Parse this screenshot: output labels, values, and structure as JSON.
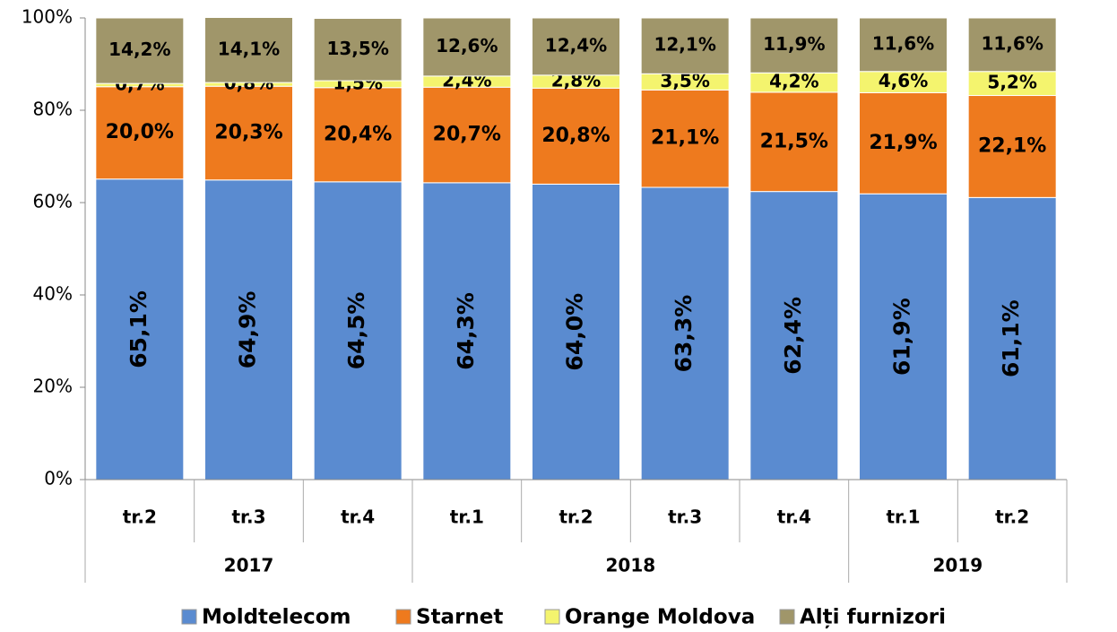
{
  "chart_data": {
    "type": "stacked_bar",
    "categories": [
      "tr.2",
      "tr.3",
      "tr.4",
      "tr.1",
      "tr.2",
      "tr.3",
      "tr.4",
      "tr.1",
      "tr.2"
    ],
    "groups": [
      "2017",
      "2017",
      "2017",
      "2018",
      "2018",
      "2018",
      "2018",
      "2019",
      "2019"
    ],
    "series": [
      {
        "name": "Moldtelecom",
        "color": "#5a8bd0",
        "values": [
          65.1,
          64.9,
          64.5,
          64.3,
          64.0,
          63.3,
          62.4,
          61.9,
          61.1
        ],
        "value_labels": [
          "65,1%",
          "64,9%",
          "64,5%",
          "64,3%",
          "64,0%",
          "63,3%",
          "62,4%",
          "61,9%",
          "61,1%"
        ]
      },
      {
        "name": "Starnet",
        "color": "#ee7a1e",
        "values": [
          20.0,
          20.3,
          20.4,
          20.7,
          20.8,
          21.1,
          21.5,
          21.9,
          22.1
        ],
        "value_labels": [
          "20,0%",
          "20,3%",
          "20,4%",
          "20,7%",
          "20,8%",
          "21,1%",
          "21,5%",
          "21,9%",
          "22,1%"
        ]
      },
      {
        "name": "Orange Moldova",
        "color": "#f4f46e",
        "values": [
          0.7,
          0.8,
          1.5,
          2.4,
          2.8,
          3.5,
          4.2,
          4.6,
          5.2
        ],
        "value_labels": [
          "0,7%",
          "0,8%",
          "1,5%",
          "2,4%",
          "2,8%",
          "3,5%",
          "4,2%",
          "4,6%",
          "5,2%"
        ]
      },
      {
        "name": "Alți furnizori",
        "color": "#a0966a",
        "values": [
          14.2,
          14.1,
          13.5,
          12.6,
          12.4,
          12.1,
          11.9,
          11.6,
          11.6
        ],
        "value_labels": [
          "14,2%",
          "14,1%",
          "13,5%",
          "12,6%",
          "12,4%",
          "12,1%",
          "11,9%",
          "11,6%",
          "11,6%"
        ]
      }
    ],
    "ylim": [
      0,
      100
    ],
    "yticks": [
      {
        "value": 0,
        "label": "0%"
      },
      {
        "value": 20,
        "label": "20%"
      },
      {
        "value": 40,
        "label": "40%"
      },
      {
        "value": 60,
        "label": "60%"
      },
      {
        "value": 80,
        "label": "80%"
      },
      {
        "value": 100,
        "label": "100%"
      }
    ],
    "grid": false,
    "legend": "bottom"
  }
}
